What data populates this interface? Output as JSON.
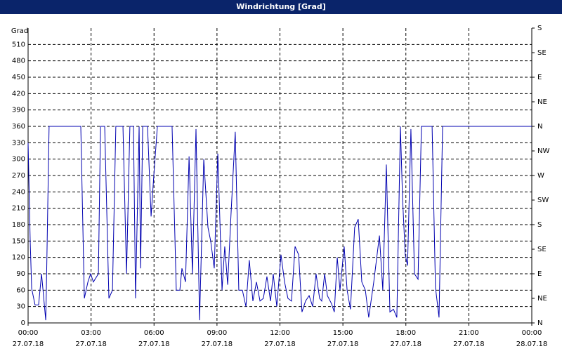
{
  "chart_data": {
    "type": "line",
    "title": "Windrichtung [Grad]",
    "y_label": "Grad",
    "x": [
      0,
      0.1,
      0.17,
      0.33,
      0.5,
      0.64,
      0.84,
      0.87,
      1.0,
      2.51,
      2.68,
      2.85,
      2.98,
      3.11,
      3.35,
      3.45,
      3.65,
      3.85,
      4.02,
      4.18,
      4.52,
      4.69,
      4.85,
      5.02,
      5.12,
      5.29,
      5.36,
      5.46,
      5.69,
      5.86,
      5.99,
      6.16,
      6.29,
      6.86,
      7.06,
      7.23,
      7.33,
      7.5,
      7.67,
      7.83,
      8.0,
      8.17,
      8.37,
      8.57,
      8.7,
      8.87,
      9.04,
      9.24,
      9.37,
      9.51,
      9.67,
      9.87,
      10.04,
      10.21,
      10.38,
      10.54,
      10.71,
      10.88,
      11.05,
      11.21,
      11.38,
      11.55,
      11.68,
      11.85,
      12.05,
      12.22,
      12.38,
      12.55,
      12.72,
      12.89,
      13.05,
      13.22,
      13.39,
      13.56,
      13.72,
      13.89,
      13.99,
      14.13,
      14.26,
      14.46,
      14.59,
      14.73,
      14.86,
      15.06,
      15.2,
      15.36,
      15.56,
      15.73,
      15.9,
      16.07,
      16.23,
      16.47,
      16.74,
      16.9,
      17.07,
      17.24,
      17.41,
      17.57,
      17.74,
      17.84,
      17.97,
      18.08,
      18.24,
      18.41,
      18.58,
      18.74,
      19.25,
      19.41,
      19.58,
      19.75,
      24.0
    ],
    "series": [
      {
        "color": "#0000b0",
        "values": [
          330,
          150,
          63,
          33,
          33,
          90,
          5,
          60,
          360,
          360,
          45,
          75,
          90,
          75,
          90,
          360,
          360,
          45,
          60,
          360,
          360,
          90,
          360,
          360,
          45,
          360,
          100,
          360,
          360,
          195,
          270,
          360,
          360,
          360,
          60,
          60,
          100,
          75,
          305,
          90,
          355,
          5,
          300,
          175,
          150,
          100,
          310,
          60,
          140,
          70,
          200,
          350,
          60,
          60,
          30,
          115,
          40,
          75,
          40,
          45,
          85,
          40,
          90,
          30,
          125,
          75,
          45,
          40,
          140,
          125,
          20,
          40,
          50,
          30,
          90,
          45,
          40,
          90,
          50,
          35,
          20,
          120,
          60,
          140,
          60,
          25,
          175,
          190,
          75,
          60,
          10,
          75,
          160,
          60,
          290,
          20,
          25,
          10,
          360,
          230,
          125,
          105,
          355,
          90,
          80,
          360,
          360,
          65,
          10,
          360,
          360
        ]
      }
    ],
    "xlim": [
      0,
      24
    ],
    "xticks": [
      {
        "value": 0,
        "label": "00:00"
      },
      {
        "value": 3,
        "label": "03:00"
      },
      {
        "value": 6,
        "label": "06:00"
      },
      {
        "value": 9,
        "label": "09:00"
      },
      {
        "value": 12,
        "label": "12:00"
      },
      {
        "value": 15,
        "label": "15:00"
      },
      {
        "value": 18,
        "label": "18:00"
      },
      {
        "value": 21,
        "label": "21:00"
      },
      {
        "value": 24,
        "label": "00:00"
      }
    ],
    "xtick_dates": [
      "27.07.18",
      "27.07.18",
      "27.07.18",
      "27.07.18",
      "27.07.18",
      "27.07.18",
      "27.07.18",
      "27.07.18",
      "28.07.18"
    ],
    "ylim": [
      0,
      540
    ],
    "yticks": [
      0,
      30,
      60,
      90,
      120,
      150,
      180,
      210,
      240,
      270,
      300,
      330,
      360,
      390,
      420,
      450,
      480,
      510
    ],
    "y2lim": [
      0,
      540
    ],
    "y2ticks": [
      {
        "value": 0,
        "label": "N"
      },
      {
        "value": 45,
        "label": "NE"
      },
      {
        "value": 90,
        "label": "E"
      },
      {
        "value": 135,
        "label": "SE"
      },
      {
        "value": 180,
        "label": "S"
      },
      {
        "value": 225,
        "label": "SW"
      },
      {
        "value": 270,
        "label": "W"
      },
      {
        "value": 315,
        "label": "NW"
      },
      {
        "value": 360,
        "label": "N"
      },
      {
        "value": 405,
        "label": "NE"
      },
      {
        "value": 450,
        "label": "E"
      },
      {
        "value": 495,
        "label": "SE"
      },
      {
        "value": 540,
        "label": "S"
      }
    ],
    "grid": true
  }
}
